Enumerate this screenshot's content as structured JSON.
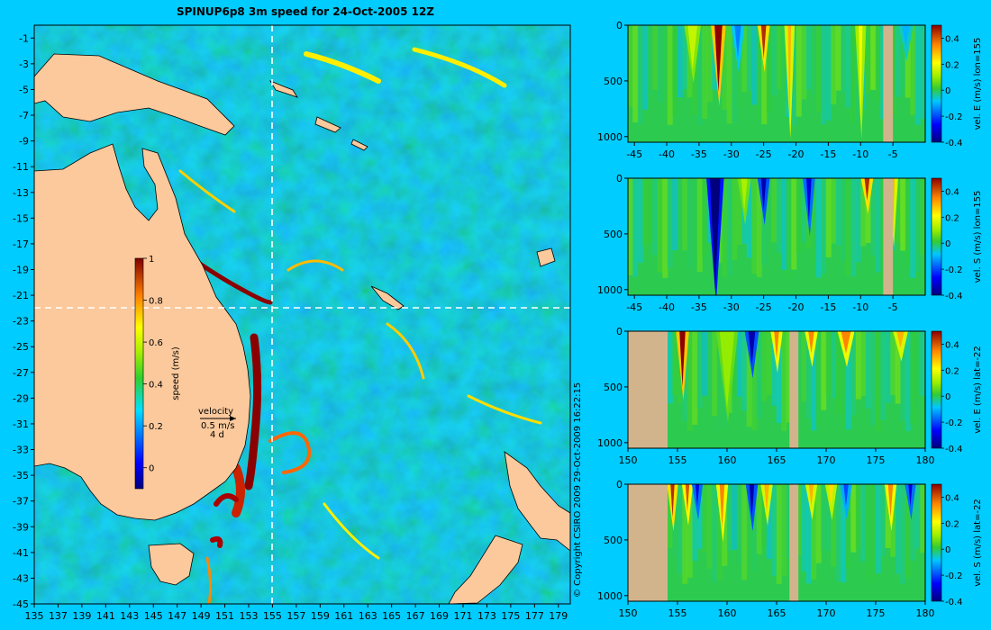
{
  "title": "SPINUP6p8 3m speed for 24-Oct-2005 12Z",
  "copyright": "© Copyright CSIRO 2009   29-Oct-2009 16:22:15",
  "colors": {
    "background": "#00ccff",
    "land": "#fbc99c",
    "section_land": "#d2b48c",
    "guide_line": "#ffffff"
  },
  "chart_data": [
    {
      "type": "heatmap",
      "name": "map",
      "xlim": [
        135,
        180
      ],
      "ylim": [
        -45,
        0
      ],
      "x_ticks": [
        135,
        137,
        139,
        141,
        143,
        145,
        147,
        149,
        151,
        153,
        155,
        157,
        159,
        161,
        163,
        165,
        167,
        169,
        171,
        173,
        175,
        177,
        179
      ],
      "y_ticks": [
        -1,
        -3,
        -5,
        -7,
        -9,
        -11,
        -13,
        -15,
        -17,
        -19,
        -21,
        -23,
        -25,
        -27,
        -29,
        -31,
        -33,
        -35,
        -37,
        -39,
        -41,
        -43,
        -45
      ],
      "section_lon": 155,
      "section_lat": -22,
      "colorbar": {
        "label": "speed (m/s)",
        "range": [
          -0.1,
          1
        ],
        "ticks": [
          0,
          0.2,
          0.4,
          0.6,
          0.8,
          1
        ]
      },
      "legend": {
        "label": "velocity",
        "scale": "0.5 m/s",
        "window": "4 d"
      }
    },
    {
      "type": "heatmap",
      "name": "section-1",
      "label": "vel. E (m/s) lon=155",
      "xlim": [
        -46,
        0
      ],
      "x_ticks": [
        -45,
        -40,
        -35,
        -30,
        -25,
        -20,
        -15,
        -10,
        -5
      ],
      "y_ticks": [
        0,
        500,
        1000
      ],
      "ylim": [
        0,
        1050
      ],
      "y_reversed": true,
      "colorbar": {
        "range": [
          -0.4,
          0.5
        ],
        "ticks": [
          -0.4,
          -0.2,
          0,
          0.2,
          0.4
        ]
      },
      "land_spans": [
        [
          -6.5,
          -5
        ]
      ],
      "features": [
        {
          "x": -32,
          "v": 0.5,
          "w": 1.2,
          "d": 600
        },
        {
          "x": -25,
          "v": 0.45,
          "w": 0.8,
          "d": 300
        },
        {
          "x": -21,
          "v": 0.3,
          "w": 0.5,
          "d": 900
        },
        {
          "x": -36,
          "v": 0.15,
          "w": 1.5,
          "d": 400
        },
        {
          "x": -29,
          "v": -0.15,
          "w": 1.0,
          "d": 300
        },
        {
          "x": -10,
          "v": 0.2,
          "w": 0.6,
          "d": 900
        },
        {
          "x": -3,
          "v": -0.1,
          "w": 1.2,
          "d": 200
        }
      ]
    },
    {
      "type": "heatmap",
      "name": "section-2",
      "label": "vel. S (m/s) lon=155",
      "xlim": [
        -46,
        0
      ],
      "x_ticks": [
        -45,
        -40,
        -35,
        -30,
        -25,
        -20,
        -15,
        -10,
        -5
      ],
      "y_ticks": [
        0,
        500,
        1000
      ],
      "ylim": [
        0,
        1050
      ],
      "y_reversed": true,
      "colorbar": {
        "range": [
          -0.4,
          0.5
        ],
        "ticks": [
          -0.4,
          -0.2,
          0,
          0.2,
          0.4
        ]
      },
      "land_spans": [
        [
          -6.5,
          -5
        ]
      ],
      "features": [
        {
          "x": -32.5,
          "v": -0.45,
          "w": 1.6,
          "d": 1000
        },
        {
          "x": -25,
          "v": -0.35,
          "w": 0.8,
          "d": 300
        },
        {
          "x": -18,
          "v": -0.3,
          "w": 0.8,
          "d": 400
        },
        {
          "x": -9,
          "v": 0.45,
          "w": 0.8,
          "d": 200
        },
        {
          "x": -5,
          "v": 0.3,
          "w": 0.5,
          "d": 500
        },
        {
          "x": -28,
          "v": 0.12,
          "w": 1.0,
          "d": 300
        }
      ]
    },
    {
      "type": "heatmap",
      "name": "section-3",
      "label": "vel. E (m/s) lat=-22",
      "xlim": [
        150,
        180
      ],
      "x_ticks": [
        150,
        155,
        160,
        165,
        170,
        175,
        180
      ],
      "y_ticks": [
        0,
        500,
        1000
      ],
      "ylim": [
        0,
        1050
      ],
      "y_reversed": true,
      "colorbar": {
        "range": [
          -0.4,
          0.5
        ],
        "ticks": [
          -0.4,
          -0.2,
          0,
          0.2,
          0.4
        ]
      },
      "land_spans": [
        [
          150,
          154
        ],
        [
          166.3,
          167.2
        ]
      ],
      "features": [
        {
          "x": 155.5,
          "v": 0.5,
          "w": 0.6,
          "d": 500
        },
        {
          "x": 162.5,
          "v": -0.35,
          "w": 0.7,
          "d": 300
        },
        {
          "x": 165,
          "v": 0.35,
          "w": 0.5,
          "d": 250
        },
        {
          "x": 168.5,
          "v": 0.35,
          "w": 0.6,
          "d": 200
        },
        {
          "x": 172,
          "v": 0.35,
          "w": 1.0,
          "d": 200
        },
        {
          "x": 177.5,
          "v": 0.3,
          "w": 0.8,
          "d": 150
        },
        {
          "x": 160,
          "v": 0.1,
          "w": 1.5,
          "d": 700
        }
      ]
    },
    {
      "type": "heatmap",
      "name": "section-4",
      "label": "vel. S (m/s) lat=-22",
      "xlim": [
        150,
        180
      ],
      "x_ticks": [
        150,
        155,
        160,
        165,
        170,
        175,
        180
      ],
      "y_ticks": [
        0,
        500,
        1000
      ],
      "ylim": [
        0,
        1050
      ],
      "y_reversed": true,
      "colorbar": {
        "range": [
          -0.4,
          0.5
        ],
        "ticks": [
          -0.4,
          -0.2,
          0,
          0.2,
          0.4
        ]
      },
      "land_spans": [
        [
          150,
          154
        ],
        [
          166.3,
          167.2
        ]
      ],
      "features": [
        {
          "x": 154.5,
          "v": 0.45,
          "w": 0.4,
          "d": 300
        },
        {
          "x": 156,
          "v": 0.4,
          "w": 0.4,
          "d": 250
        },
        {
          "x": 157,
          "v": -0.3,
          "w": 0.4,
          "d": 200
        },
        {
          "x": 159.5,
          "v": 0.35,
          "w": 0.5,
          "d": 400
        },
        {
          "x": 162.5,
          "v": -0.35,
          "w": 0.5,
          "d": 300
        },
        {
          "x": 164,
          "v": 0.3,
          "w": 0.5,
          "d": 250
        },
        {
          "x": 168.5,
          "v": 0.3,
          "w": 0.5,
          "d": 200
        },
        {
          "x": 170.5,
          "v": 0.25,
          "w": 0.5,
          "d": 200
        },
        {
          "x": 172,
          "v": -0.2,
          "w": 0.5,
          "d": 200
        },
        {
          "x": 176.5,
          "v": 0.35,
          "w": 0.5,
          "d": 300
        },
        {
          "x": 178.5,
          "v": -0.3,
          "w": 0.4,
          "d": 200
        }
      ]
    }
  ]
}
